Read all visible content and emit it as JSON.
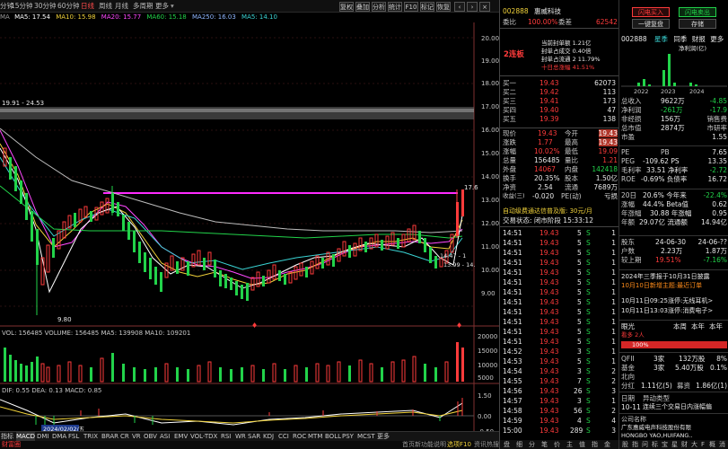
{
  "toolbar": {
    "left_items": [
      "分钟",
      "15分钟",
      "30分钟",
      "60分钟",
      "日线",
      "周线",
      "月线",
      "多周期",
      "更多"
    ],
    "active": "日线",
    "right_items": [
      "复权",
      "叠加",
      "分析",
      "统计",
      "F10",
      "标记",
      "恢复"
    ]
  },
  "ma_line": {
    "prefix": "MA",
    "items": [
      {
        "label": "MA5: 17.54",
        "color": "#ffffff"
      },
      {
        "label": "MA10: 15.98",
        "color": "#f1d23a"
      },
      {
        "label": "MA20: 15.77",
        "color": "#ff48ff"
      },
      {
        "label": "MA60: 15.18",
        "color": "#22d34a"
      },
      {
        "label": "MA250: 16.03",
        "color": "#8fb6ff"
      },
      {
        "label": "MA5: 14.10",
        "color": "#3ad4d4"
      }
    ]
  },
  "price_axis": [
    "20.00",
    "19.00",
    "18.00",
    "17.00",
    "16.00",
    "15.00",
    "14.00",
    "13.00",
    "12.00",
    "11.00",
    "10.00",
    "9.00"
  ],
  "chart_annotations": {
    "high_range": "19.91 - 24.53",
    "low": "9.80",
    "peak": "17.8",
    "near_low": "13.99 - 14.",
    "near_a": "14.47 - 1",
    "mid": "17.6"
  },
  "volume": {
    "header": "VOL: 156485  VOLUME: 156485  MA5: 139908  MA10: 109201",
    "axis": [
      "20000",
      "15000",
      "10000",
      "5000"
    ]
  },
  "macd": {
    "header": "DIF: 0.55  DEA: 0.13  MACD: 0.85",
    "date": "2024/02/02/五",
    "axis": [
      "1.50",
      "0.00",
      "-0.50"
    ]
  },
  "date_ticks": [
    "3",
    "4",
    "5",
    "6",
    "7",
    "8",
    "9",
    "10",
    "11",
    "12"
  ],
  "bottom_tabs": [
    "指标",
    "MACD",
    "DMI",
    "DMA",
    "FSL",
    "TRIX",
    "BRAR",
    "CR",
    "VR",
    "OBV",
    "ASI",
    "EMV",
    "VOL-TDX",
    "RSI",
    "WR",
    "SAR",
    "KDJ",
    "CCI",
    "ROC",
    "MTM",
    "BOLL",
    "PSY",
    "MCST",
    "更多"
  ],
  "status_bar": {
    "left": "财富圈",
    "notice": "首页新功能说明",
    "tip": "选项F10",
    "right": "资讯热搜"
  },
  "quote": {
    "code": "002888",
    "name": "惠威科技",
    "buttons": {
      "buy": "闪电买入",
      "sell": "闪电卖出",
      "fav": "一键复盘",
      "save": "存储"
    },
    "weibi": {
      "label": "委比",
      "value": "100.00%",
      "label2": "委差",
      "value2": "62542"
    },
    "limit_tag": "2连板",
    "limit_info": [
      "当前封单额 1.21亿",
      "封单占成交 0.40倍",
      "封单占流通 2 11.79%",
      "十日总涨幅 41.51%"
    ],
    "sells": [
      {
        "label": "卖五",
        "price": "",
        "vol": ""
      },
      {
        "label": "卖四",
        "price": "",
        "vol": ""
      },
      {
        "label": "卖三",
        "price": "",
        "vol": ""
      },
      {
        "label": "卖二",
        "price": "",
        "vol": ""
      },
      {
        "label": "卖一",
        "price": "",
        "vol": ""
      }
    ],
    "buys": [
      {
        "label": "买一",
        "price": "19.43",
        "vol": "62073"
      },
      {
        "label": "买二",
        "price": "19.42",
        "vol": "113"
      },
      {
        "label": "买三",
        "price": "19.41",
        "vol": "173"
      },
      {
        "label": "买四",
        "price": "19.40",
        "vol": "47"
      },
      {
        "label": "买五",
        "price": "19.39",
        "vol": "138"
      }
    ],
    "stats": [
      {
        "l1": "现价",
        "v1": "19.43",
        "l2": "今开",
        "v2": "19.43"
      },
      {
        "l1": "涨跌",
        "v1": "1.77",
        "l2": "最高",
        "v2": "19.43"
      },
      {
        "l1": "涨幅",
        "v1": "10.02%",
        "l2": "最低",
        "v2": "19.09"
      },
      {
        "l1": "总量",
        "v1": "156485",
        "l2": "量比",
        "v2": "1.21"
      },
      {
        "l1": "外盘",
        "v1": "14067",
        "l2": "内盘",
        "v2": "142418"
      },
      {
        "l1": "换手",
        "v1": "20.35%",
        "l2": "股本",
        "v2": "1.50亿"
      },
      {
        "l1": "净资",
        "v1": "2.54",
        "l2": "流通",
        "v2": "7689万"
      },
      {
        "l1": "收益(三)",
        "v1": "-0.020",
        "l2": "PE(动)",
        "v2": "亏损"
      }
    ],
    "ad_line": "自动级费通达信普及版: 30元/月",
    "trade_status": "交易状态: 闭市阶段 15:33:12",
    "ticks": [
      {
        "t": "14:51",
        "p": "19.43",
        "v": "5",
        "d": "S",
        "n": "1"
      },
      {
        "t": "14:51",
        "p": "19.43",
        "v": "5",
        "d": "S",
        "n": "1"
      },
      {
        "t": "14:51",
        "p": "19.43",
        "v": "5",
        "d": "S",
        "n": "1"
      },
      {
        "t": "14:51",
        "p": "19.43",
        "v": "5",
        "d": "S",
        "n": "1"
      },
      {
        "t": "14:51",
        "p": "19.43",
        "v": "5",
        "d": "S",
        "n": "1"
      },
      {
        "t": "14:51",
        "p": "19.43",
        "v": "5",
        "d": "S",
        "n": "1"
      },
      {
        "t": "14:51",
        "p": "19.43",
        "v": "5",
        "d": "S",
        "n": "1"
      },
      {
        "t": "14:51",
        "p": "19.43",
        "v": "5",
        "d": "S",
        "n": "1"
      },
      {
        "t": "14:51",
        "p": "19.43",
        "v": "5",
        "d": "S",
        "n": "1"
      },
      {
        "t": "14:51",
        "p": "19.43",
        "v": "5",
        "d": "S",
        "n": "1"
      },
      {
        "t": "14:51",
        "p": "19.43",
        "v": "5",
        "d": "S",
        "n": "1"
      },
      {
        "t": "14:51",
        "p": "19.43",
        "v": "5",
        "d": "S",
        "n": "1"
      },
      {
        "t": "14:52",
        "p": "19.43",
        "v": "3",
        "d": "S",
        "n": "1"
      },
      {
        "t": "14:53",
        "p": "19.43",
        "v": "5",
        "d": "S",
        "n": "1"
      },
      {
        "t": "14:54",
        "p": "19.43",
        "v": "3",
        "d": "S",
        "n": "2"
      },
      {
        "t": "14:55",
        "p": "19.43",
        "v": "7",
        "d": "S",
        "n": "2"
      },
      {
        "t": "14:56",
        "p": "19.43",
        "v": "26",
        "d": "S",
        "n": "3"
      },
      {
        "t": "14:57",
        "p": "19.43",
        "v": "3",
        "d": "S",
        "n": "1"
      },
      {
        "t": "14:58",
        "p": "19.43",
        "v": "56",
        "d": "S",
        "n": "2"
      },
      {
        "t": "14:59",
        "p": "19.43",
        "v": "4",
        "d": "S",
        "n": "4"
      },
      {
        "t": "15:00",
        "p": "19.43",
        "v": "289",
        "d": "S",
        "n": "3"
      }
    ],
    "footer_tabs": [
      "盘",
      "细",
      "分",
      "笔",
      "价",
      "主",
      "值",
      "指",
      "金"
    ]
  },
  "f10": {
    "code": "002888",
    "tabs": [
      "星季",
      "同季",
      "财报",
      "更多"
    ],
    "chart_title": "净利润(亿)",
    "years": [
      "2022",
      "2023",
      "2024"
    ],
    "rows": [
      {
        "l": "总收入",
        "a": "9622万",
        "b": "-4.85"
      },
      {
        "l": "净利润",
        "a": "-261万",
        "b": "-17.9"
      },
      {
        "l": "非经损",
        "a": "156万",
        "b": "销售费"
      },
      {
        "l": "总市值",
        "a": "2874万",
        "b": "市研率"
      },
      {
        "l": "市盈",
        "a": "",
        "b": "1.55"
      }
    ],
    "val_rows": [
      {
        "l": "PE",
        "a": "PB",
        "b": "7.65"
      },
      {
        "l": "PEG",
        "a": "-109.62 PS",
        "b": "13.35"
      },
      {
        "l": "毛利率",
        "a": "33.51 净利率",
        "b": "-2.72"
      },
      {
        "l": "ROE",
        "a": "-0.69% 负债率",
        "b": "16.72"
      }
    ],
    "perf_rows": [
      {
        "l": "20日",
        "a": "20.6% 今年来",
        "b": "-22.4%"
      },
      {
        "l": "涨幅",
        "a": "44.4% Beta值",
        "b": "0.62"
      },
      {
        "l": "年涨幅",
        "a": "30.88 年涨幅",
        "b": "0.95"
      },
      {
        "l": "年额",
        "a": "29.07亿 流通额",
        "b": "14.94亿"
      }
    ],
    "holder_rows": [
      {
        "l": "股东",
        "a": "24-06-30",
        "b": "24-06-??"
      },
      {
        "l": "户数",
        "a": "2.23万",
        "b": "1.87万"
      },
      {
        "l": "较上期",
        "a": "19.51%",
        "b": "-7.16%"
      }
    ],
    "news": [
      "2024年三季报于10月31日披露",
      "10月10日新增主题:最近订单",
      "10月11日09:25涨停:无线耳机>",
      "10月11日13:03涨停:消费电子>"
    ],
    "gauge": {
      "label": "眼光",
      "a": "本周",
      "b": "本年",
      "c": "本年",
      "sub": "看多 2人",
      "pct": "100%"
    },
    "hk": [
      {
        "l": "QFII",
        "a": "3家",
        "b": "132万股",
        "c": "8%"
      },
      {
        "l": "基金",
        "a": "3家",
        "b": "5.40万股",
        "c": "0.1%"
      },
      {
        "l": "北向",
        "a": "",
        "b": "",
        "c": ""
      },
      {
        "l": "分红",
        "a": "1.11亿(5)",
        "b": "募资",
        "c": "1.86亿(1)"
      }
    ],
    "events": [
      {
        "d": "日期",
        "t": "异动类型"
      },
      {
        "d": "10-11",
        "t": "连续三个交易日内涨幅偏"
      }
    ],
    "company": [
      "公司名称",
      "广东惠威电声科技股份有限",
      "HONGBO YAO,HUIFANG.."
    ],
    "footer": [
      "股",
      "指",
      "问",
      "标",
      "宝",
      "星",
      "财",
      "大",
      "F",
      "概",
      "消"
    ]
  }
}
